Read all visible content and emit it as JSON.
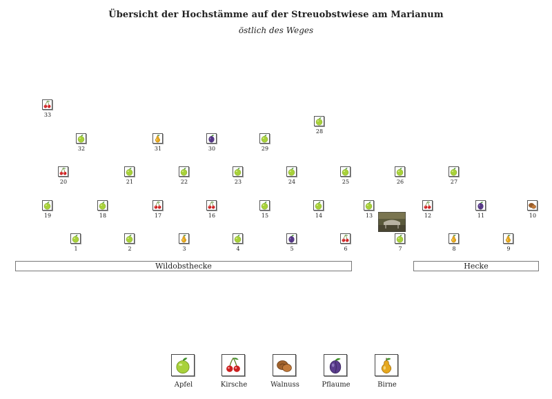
{
  "header": {
    "title": "Übersicht der Hochstämme auf der Streuobstwiese am Marianum",
    "subtitle": "östlich des Weges"
  },
  "trees": [
    {
      "number": "1",
      "fruit": "apfel-icon"
    },
    {
      "number": "2",
      "fruit": "apfel-icon"
    },
    {
      "number": "3",
      "fruit": "birne-icon"
    },
    {
      "number": "4",
      "fruit": "apfel-icon"
    },
    {
      "number": "5",
      "fruit": "pflaume-icon"
    },
    {
      "number": "6",
      "fruit": "kirsche-icon"
    },
    {
      "number": "7",
      "fruit": "apfel-icon"
    },
    {
      "number": "8",
      "fruit": "birne-icon"
    },
    {
      "number": "9",
      "fruit": "birne-icon"
    },
    {
      "number": "10",
      "fruit": "walnuss-icon"
    },
    {
      "number": "11",
      "fruit": "pflaume-icon"
    },
    {
      "number": "12",
      "fruit": "kirsche-icon"
    },
    {
      "number": "13",
      "fruit": "apfel-icon"
    },
    {
      "number": "14",
      "fruit": "apfel-icon"
    },
    {
      "number": "15",
      "fruit": "apfel-icon"
    },
    {
      "number": "16",
      "fruit": "kirsche-icon"
    },
    {
      "number": "17",
      "fruit": "kirsche-icon"
    },
    {
      "number": "18",
      "fruit": "apfel-icon"
    },
    {
      "number": "19",
      "fruit": "apfel-icon"
    },
    {
      "number": "20",
      "fruit": "kirsche-icon"
    },
    {
      "number": "21",
      "fruit": "apfel-icon"
    },
    {
      "number": "22",
      "fruit": "apfel-icon"
    },
    {
      "number": "23",
      "fruit": "apfel-icon"
    },
    {
      "number": "24",
      "fruit": "apfel-icon"
    },
    {
      "number": "25",
      "fruit": "apfel-icon"
    },
    {
      "number": "26",
      "fruit": "apfel-icon"
    },
    {
      "number": "27",
      "fruit": "apfel-icon"
    },
    {
      "number": "28",
      "fruit": "apfel-icon"
    },
    {
      "number": "29",
      "fruit": "apfel-icon"
    },
    {
      "number": "30",
      "fruit": "pflaume-icon"
    },
    {
      "number": "31",
      "fruit": "birne-icon"
    },
    {
      "number": "32",
      "fruit": "apfel-icon"
    },
    {
      "number": "33",
      "fruit": "kirsche-icon"
    }
  ],
  "hedges": {
    "left_label": "Wildobsthecke",
    "right_label": "Hecke"
  },
  "legend": [
    {
      "label": "Apfel",
      "icon": "apfel-icon"
    },
    {
      "label": "Kirsche",
      "icon": "kirsche-icon"
    },
    {
      "label": "Walnuss",
      "icon": "walnuss-icon"
    },
    {
      "label": "Pflaume",
      "icon": "pflaume-icon"
    },
    {
      "label": "Birne",
      "icon": "birne-icon"
    }
  ],
  "colors": {
    "apple": "#a8d13a",
    "cherry": "#cc1f1f",
    "walnut": "#a0622d",
    "plum": "#5a3c8c",
    "pear": "#e6a81e",
    "leaf": "#3f8f2a"
  }
}
